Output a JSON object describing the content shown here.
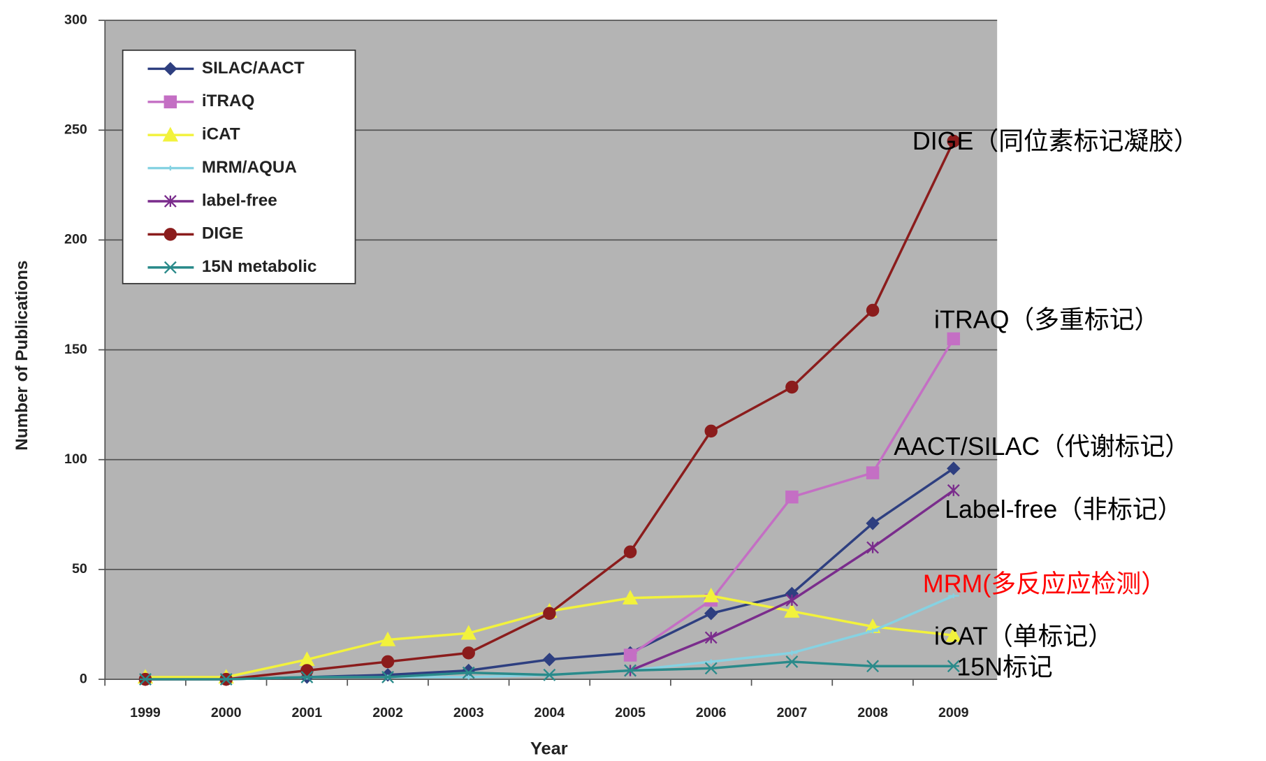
{
  "chart_data": {
    "type": "line",
    "y_label": "Number of Publications",
    "x_label": "Year",
    "categories": [
      "1999",
      "2000",
      "2001",
      "2002",
      "2003",
      "2004",
      "2005",
      "2006",
      "2007",
      "2008",
      "2009"
    ],
    "series": [
      {
        "name": "SILAC/AACT",
        "color": "#2e3f80",
        "marker": "diamond",
        "values": [
          0,
          0,
          1,
          2,
          4,
          9,
          12,
          30,
          39,
          71,
          96
        ]
      },
      {
        "name": "iTRAQ",
        "color": "#c46fc4",
        "marker": "square",
        "values": [
          null,
          null,
          null,
          null,
          null,
          null,
          11,
          36,
          83,
          94,
          155
        ]
      },
      {
        "name": "iCAT",
        "color": "#f2f23c",
        "marker": "triangle",
        "values": [
          1,
          1,
          9,
          18,
          21,
          31,
          37,
          38,
          31,
          24,
          20
        ]
      },
      {
        "name": "MRM/AQUA",
        "color": "#86d2e2",
        "marker": "dash",
        "values": [
          0,
          0,
          1,
          1,
          1,
          2,
          4,
          8,
          12,
          22,
          38
        ]
      },
      {
        "name": "label-free",
        "color": "#7a2c8c",
        "marker": "star",
        "values": [
          null,
          null,
          null,
          null,
          null,
          null,
          4,
          19,
          36,
          60,
          86
        ]
      },
      {
        "name": "DIGE",
        "color": "#8b1c1c",
        "marker": "circle",
        "values": [
          0,
          0,
          4,
          8,
          12,
          30,
          58,
          113,
          133,
          168,
          245
        ]
      },
      {
        "name": "15N metabolic",
        "color": "#2a8a8a",
        "marker": "asterisk",
        "values": [
          0,
          0,
          1,
          1,
          3,
          2,
          4,
          5,
          8,
          6,
          6
        ]
      }
    ],
    "ylim": [
      0,
      300
    ],
    "yticks": [
      0,
      50,
      100,
      150,
      200,
      250,
      300
    ],
    "grid": true,
    "legend": "upper left",
    "annotations": [
      {
        "text": "DIGE（同位素标记凝胶）",
        "color": "#000000"
      },
      {
        "text": "iTRAQ（多重标记）",
        "color": "#000000"
      },
      {
        "text": "AACT/SILAC（代谢标记）",
        "color": "#000000"
      },
      {
        "text": "Label-free（非标记）",
        "color": "#000000"
      },
      {
        "text": "MRM(多反应应检测）",
        "color": "#ff0000"
      },
      {
        "text": "iCAT（单标记）",
        "color": "#000000"
      },
      {
        "text": "15N标记",
        "color": "#000000"
      }
    ]
  }
}
